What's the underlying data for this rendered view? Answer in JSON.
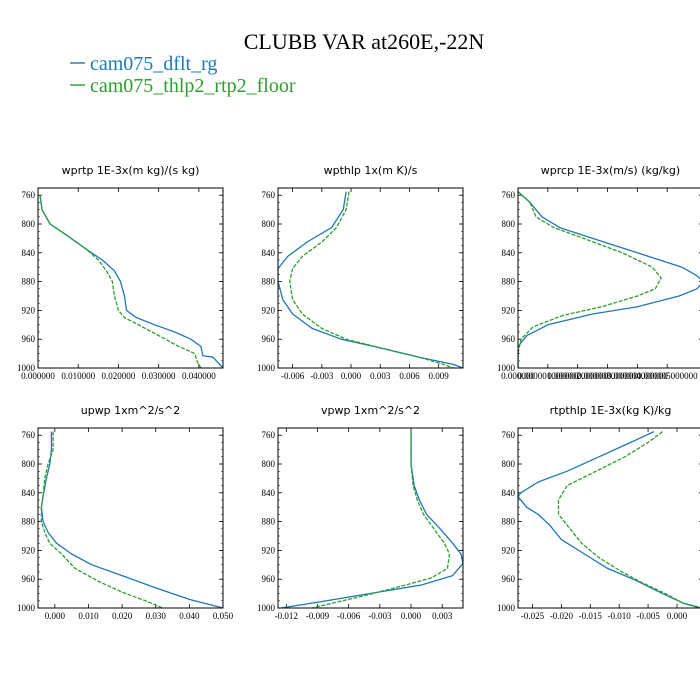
{
  "header": {
    "title": "CLUBB VAR at260E,-22N"
  },
  "legend": [
    {
      "name": "cam075_dflt_rg",
      "color": "#1f77b4",
      "dash": "solid"
    },
    {
      "name": "cam075_thlp2_rtp2_floor",
      "color": "#2ca02c",
      "dash": "dashed"
    }
  ],
  "chart_data": [
    {
      "type": "line",
      "title": "wprtp  1E-3x(m kg)/(s kg)",
      "ylabel": "",
      "xlabel": "",
      "xlim": [
        0,
        0.046
      ],
      "ylim": [
        1000,
        750
      ],
      "xticks": [
        0,
        0.01,
        0.02,
        0.03,
        0.04
      ],
      "xtick_labels": [
        "0.000000",
        "0.010000",
        "0.020000",
        "0.030000",
        "0.040000"
      ],
      "yticks": [
        760,
        800,
        840,
        880,
        920,
        960,
        1000
      ],
      "series": [
        {
          "name": "cam075_dflt_rg",
          "points": [
            [
              0.0005,
              760
            ],
            [
              0.001,
              780
            ],
            [
              0.003,
              800
            ],
            [
              0.007,
              815
            ],
            [
              0.012,
              835
            ],
            [
              0.016,
              850
            ],
            [
              0.019,
              865
            ],
            [
              0.0205,
              880
            ],
            [
              0.0215,
              900
            ],
            [
              0.022,
              920
            ],
            [
              0.0245,
              930
            ],
            [
              0.029,
              940
            ],
            [
              0.034,
              950
            ],
            [
              0.038,
              960
            ],
            [
              0.0405,
              970
            ],
            [
              0.041,
              983
            ],
            [
              0.0435,
              985
            ],
            [
              0.046,
              1000
            ]
          ]
        },
        {
          "name": "cam075_thlp2_rtp2_floor",
          "points": [
            [
              0.0005,
              760
            ],
            [
              0.001,
              780
            ],
            [
              0.003,
              800
            ],
            [
              0.007,
              815
            ],
            [
              0.012,
              835
            ],
            [
              0.015,
              850
            ],
            [
              0.017,
              865
            ],
            [
              0.0185,
              880
            ],
            [
              0.019,
              900
            ],
            [
              0.02,
              920
            ],
            [
              0.0215,
              930
            ],
            [
              0.025,
              940
            ],
            [
              0.03,
              955
            ],
            [
              0.035,
              970
            ],
            [
              0.039,
              980
            ],
            [
              0.0395,
              990
            ],
            [
              0.0405,
              1000
            ]
          ]
        }
      ]
    },
    {
      "type": "line",
      "title": "wpthlp  1x(m K)/s",
      "ylabel": "",
      "xlabel": "",
      "xlim": [
        -0.0075,
        0.0115
      ],
      "ylim": [
        1000,
        750
      ],
      "xticks": [
        -0.006,
        -0.003,
        0.0,
        0.003,
        0.006,
        0.009
      ],
      "xtick_labels": [
        "-0.006",
        "-0.003",
        "0.000",
        "0.003",
        "0.006",
        "0.009"
      ],
      "yticks": [
        760,
        800,
        840,
        880,
        920,
        960,
        1000
      ],
      "series": [
        {
          "name": "cam075_dflt_rg",
          "points": [
            [
              -0.0005,
              755
            ],
            [
              -0.0008,
              780
            ],
            [
              -0.002,
              805
            ],
            [
              -0.0045,
              825
            ],
            [
              -0.0065,
              845
            ],
            [
              -0.0075,
              862
            ],
            [
              -0.0075,
              880
            ],
            [
              -0.007,
              905
            ],
            [
              -0.006,
              925
            ],
            [
              -0.004,
              945
            ],
            [
              -0.001,
              960
            ],
            [
              0.003,
              972
            ],
            [
              0.007,
              985
            ],
            [
              0.0105,
              995
            ],
            [
              0.0115,
              1000
            ]
          ]
        },
        {
          "name": "cam075_thlp2_rtp2_floor",
          "points": [
            [
              -0.0002,
              755
            ],
            [
              -0.0005,
              780
            ],
            [
              -0.0015,
              805
            ],
            [
              -0.003,
              825
            ],
            [
              -0.005,
              845
            ],
            [
              -0.006,
              862
            ],
            [
              -0.0063,
              880
            ],
            [
              -0.006,
              905
            ],
            [
              -0.005,
              925
            ],
            [
              -0.003,
              945
            ],
            [
              -0.0005,
              960
            ],
            [
              0.003,
              972
            ],
            [
              0.007,
              985
            ],
            [
              0.0095,
              995
            ],
            [
              0.0105,
              1000
            ]
          ]
        }
      ]
    },
    {
      "type": "line",
      "title": "wprcp  1E-3x(m/s) (kg/kg)",
      "ylabel": "",
      "xlabel": "",
      "xlim": [
        0,
        6.2e-06
      ],
      "ylim": [
        1000,
        750
      ],
      "xticks": [
        0,
        1e-06,
        2e-06,
        3e-06,
        4e-06,
        5e-06
      ],
      "xtick_labels": [
        "0.000000",
        "0.000001000000",
        "0.000002000000",
        "0.000003000000",
        "0.000004000000",
        "0.000005000000"
      ],
      "yticks": [
        760,
        800,
        840,
        880,
        920,
        960,
        1000
      ],
      "series": [
        {
          "name": "cam075_dflt_rg",
          "points": [
            [
              0,
              755
            ],
            [
              4e-07,
              770
            ],
            [
              8e-07,
              790
            ],
            [
              1.4e-06,
              805
            ],
            [
              2.5e-06,
              820
            ],
            [
              4e-06,
              840
            ],
            [
              5.5e-06,
              860
            ],
            [
              6e-06,
              872
            ],
            [
              6.2e-06,
              880
            ],
            [
              6e-06,
              890
            ],
            [
              5.4e-06,
              900
            ],
            [
              4e-06,
              915
            ],
            [
              2.5e-06,
              925
            ],
            [
              1e-06,
              940
            ],
            [
              3e-07,
              955
            ],
            [
              0,
              970
            ],
            [
              0,
              1000
            ]
          ]
        },
        {
          "name": "cam075_thlp2_rtp2_floor",
          "points": [
            [
              0,
              755
            ],
            [
              4e-07,
              770
            ],
            [
              6e-07,
              790
            ],
            [
              1.2e-06,
              805
            ],
            [
              2.2e-06,
              820
            ],
            [
              3.5e-06,
              840
            ],
            [
              4.5e-06,
              860
            ],
            [
              4.8e-06,
              875
            ],
            [
              4.6e-06,
              890
            ],
            [
              4e-06,
              900
            ],
            [
              2.8e-06,
              915
            ],
            [
              1.5e-06,
              927
            ],
            [
              5e-07,
              943
            ],
            [
              1e-07,
              960
            ],
            [
              0,
              980
            ],
            [
              0,
              1000
            ]
          ]
        }
      ]
    },
    {
      "type": "line",
      "title": "upwp  1xm^2/s^2",
      "ylabel": "",
      "xlabel": "",
      "xlim": [
        -0.005,
        0.05
      ],
      "ylim": [
        1000,
        750
      ],
      "xticks": [
        0.0,
        0.01,
        0.02,
        0.03,
        0.04,
        0.05
      ],
      "xtick_labels": [
        "0.000",
        "0.010",
        "0.020",
        "0.030",
        "0.040",
        "0.050"
      ],
      "yticks": [
        760,
        800,
        840,
        880,
        920,
        960,
        1000
      ],
      "series": [
        {
          "name": "cam075_dflt_rg",
          "points": [
            [
              -0.001,
              755
            ],
            [
              -0.001,
              780
            ],
            [
              -0.0015,
              800
            ],
            [
              -0.0025,
              820
            ],
            [
              -0.0035,
              845
            ],
            [
              -0.004,
              860
            ],
            [
              -0.0035,
              880
            ],
            [
              -0.002,
              895
            ],
            [
              0.0005,
              910
            ],
            [
              0.005,
              925
            ],
            [
              0.011,
              940
            ],
            [
              0.02,
              955
            ],
            [
              0.03,
              972
            ],
            [
              0.04,
              988
            ],
            [
              0.05,
              1000
            ]
          ]
        },
        {
          "name": "cam075_thlp2_rtp2_floor",
          "points": [
            [
              -0.0005,
              755
            ],
            [
              -0.0005,
              780
            ],
            [
              -0.002,
              800
            ],
            [
              -0.003,
              820
            ],
            [
              -0.0035,
              845
            ],
            [
              -0.004,
              860
            ],
            [
              -0.004,
              880
            ],
            [
              -0.003,
              895
            ],
            [
              -0.0015,
              910
            ],
            [
              0.002,
              925
            ],
            [
              0.006,
              945
            ],
            [
              0.013,
              963
            ],
            [
              0.02,
              978
            ],
            [
              0.027,
              990
            ],
            [
              0.032,
              1000
            ]
          ]
        }
      ]
    },
    {
      "type": "line",
      "title": "vpwp  1xm^2/s^2",
      "ylabel": "",
      "xlabel": "",
      "xlim": [
        -0.0128,
        0.005
      ],
      "ylim": [
        1000,
        750
      ],
      "xticks": [
        -0.012,
        -0.009,
        -0.006,
        -0.003,
        0.0,
        0.003
      ],
      "xtick_labels": [
        "-0.012",
        "-0.009",
        "-0.006",
        "-0.003",
        "0.000",
        "0.003"
      ],
      "yticks": [
        760,
        800,
        840,
        880,
        920,
        960,
        1000
      ],
      "series": [
        {
          "name": "cam075_dflt_rg",
          "points": [
            [
              0,
              755
            ],
            [
              0,
              800
            ],
            [
              0.0003,
              830
            ],
            [
              0.0008,
              850
            ],
            [
              0.0015,
              870
            ],
            [
              0.0028,
              890
            ],
            [
              0.004,
              910
            ],
            [
              0.0048,
              925
            ],
            [
              0.005,
              938
            ],
            [
              0.004,
              955
            ],
            [
              0.001,
              968
            ],
            [
              -0.004,
              980
            ],
            [
              -0.009,
              992
            ],
            [
              -0.0125,
              1000
            ]
          ]
        },
        {
          "name": "cam075_thlp2_rtp2_floor",
          "points": [
            [
              0,
              755
            ],
            [
              0,
              800
            ],
            [
              0.0002,
              830
            ],
            [
              0.0006,
              850
            ],
            [
              0.0012,
              870
            ],
            [
              0.0022,
              890
            ],
            [
              0.0032,
              910
            ],
            [
              0.0037,
              925
            ],
            [
              0.0035,
              945
            ],
            [
              0.002,
              958
            ],
            [
              -0.001,
              970
            ],
            [
              -0.0045,
              983
            ],
            [
              -0.0075,
              993
            ],
            [
              -0.0095,
              1000
            ]
          ]
        }
      ]
    },
    {
      "type": "line",
      "title": "rtpthlp  1E-3x(kg K)/kg",
      "ylabel": "",
      "xlabel": "",
      "xlim": [
        -0.0275,
        0.0045
      ],
      "ylim": [
        1000,
        750
      ],
      "xticks": [
        -0.025,
        -0.02,
        -0.015,
        -0.01,
        -0.005,
        0.0
      ],
      "xtick_labels": [
        "-0.025",
        "-0.020",
        "-0.015",
        "-0.010",
        "-0.005",
        "0.000"
      ],
      "yticks": [
        760,
        800,
        840,
        880,
        920,
        960,
        1000
      ],
      "series": [
        {
          "name": "cam075_dflt_rg",
          "points": [
            [
              -0.004,
              755
            ],
            [
              -0.008,
              770
            ],
            [
              -0.0135,
              790
            ],
            [
              -0.019,
              810
            ],
            [
              -0.024,
              825
            ],
            [
              -0.027,
              840
            ],
            [
              -0.0275,
              845
            ],
            [
              -0.026,
              860
            ],
            [
              -0.024,
              870
            ],
            [
              -0.022,
              885
            ],
            [
              -0.02,
              905
            ],
            [
              -0.016,
              925
            ],
            [
              -0.012,
              945
            ],
            [
              -0.007,
              962
            ],
            [
              -0.003,
              978
            ],
            [
              0.001,
              993
            ],
            [
              0.004,
              1000
            ]
          ]
        },
        {
          "name": "cam075_thlp2_rtp2_floor",
          "points": [
            [
              -0.0025,
              755
            ],
            [
              -0.005,
              770
            ],
            [
              -0.009,
              790
            ],
            [
              -0.014,
              810
            ],
            [
              -0.019,
              830
            ],
            [
              -0.0205,
              850
            ],
            [
              -0.0205,
              870
            ],
            [
              -0.0185,
              890
            ],
            [
              -0.0165,
              910
            ],
            [
              -0.0135,
              930
            ],
            [
              -0.0095,
              950
            ],
            [
              -0.006,
              965
            ],
            [
              -0.0025,
              978
            ],
            [
              0.001,
              993
            ],
            [
              0.0045,
              1000
            ]
          ]
        }
      ]
    }
  ]
}
